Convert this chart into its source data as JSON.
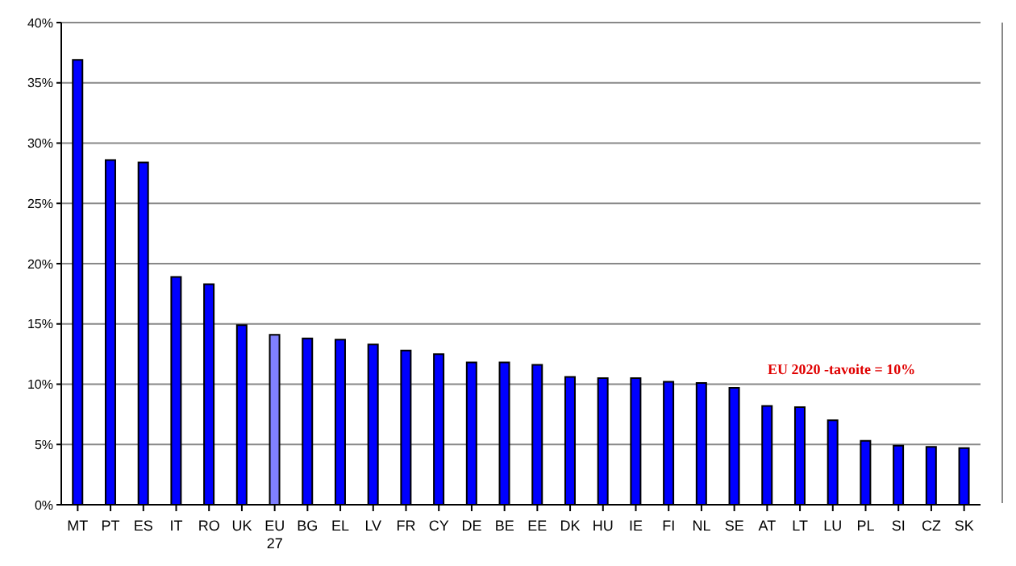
{
  "chart_data": {
    "type": "bar",
    "categories": [
      "MT",
      "PT",
      "ES",
      "IT",
      "RO",
      "UK",
      "EU 27",
      "BG",
      "EL",
      "LV",
      "FR",
      "CY",
      "DE",
      "BE",
      "EE",
      "DK",
      "HU",
      "IE",
      "FI",
      "NL",
      "SE",
      "AT",
      "LT",
      "LU",
      "PL",
      "SI",
      "CZ",
      "SK"
    ],
    "values": [
      36.9,
      28.6,
      28.4,
      18.9,
      18.3,
      14.9,
      14.1,
      13.8,
      13.7,
      13.3,
      12.8,
      12.5,
      11.8,
      11.8,
      11.6,
      10.6,
      10.5,
      10.5,
      10.2,
      10.1,
      9.7,
      8.2,
      8.1,
      7.0,
      5.3,
      4.9,
      4.8,
      4.7
    ],
    "colors": [
      "#0000ff",
      "#0000ff",
      "#0000ff",
      "#0000ff",
      "#0000ff",
      "#0000ff",
      "#8080ff",
      "#0000ff",
      "#0000ff",
      "#0000ff",
      "#0000ff",
      "#0000ff",
      "#0000ff",
      "#0000ff",
      "#0000ff",
      "#0000ff",
      "#0000ff",
      "#0000ff",
      "#0000ff",
      "#0000ff",
      "#0000ff",
      "#0000ff",
      "#0000ff",
      "#0000ff",
      "#0000ff",
      "#0000ff",
      "#0000ff",
      "#0000ff"
    ],
    "ylim": [
      0,
      40
    ],
    "yticks": [
      {
        "value": 0,
        "label": "0%"
      },
      {
        "value": 5,
        "label": "5%"
      },
      {
        "value": 10,
        "label": "10%"
      },
      {
        "value": 15,
        "label": "15%"
      },
      {
        "value": 20,
        "label": "20%"
      },
      {
        "value": 25,
        "label": "25%"
      },
      {
        "value": 30,
        "label": "30%"
      },
      {
        "value": 35,
        "label": "35%"
      },
      {
        "value": 40,
        "label": "40%"
      }
    ],
    "grid": "y",
    "annotations": [
      "EU 2020 -tavoite = 10%"
    ]
  }
}
